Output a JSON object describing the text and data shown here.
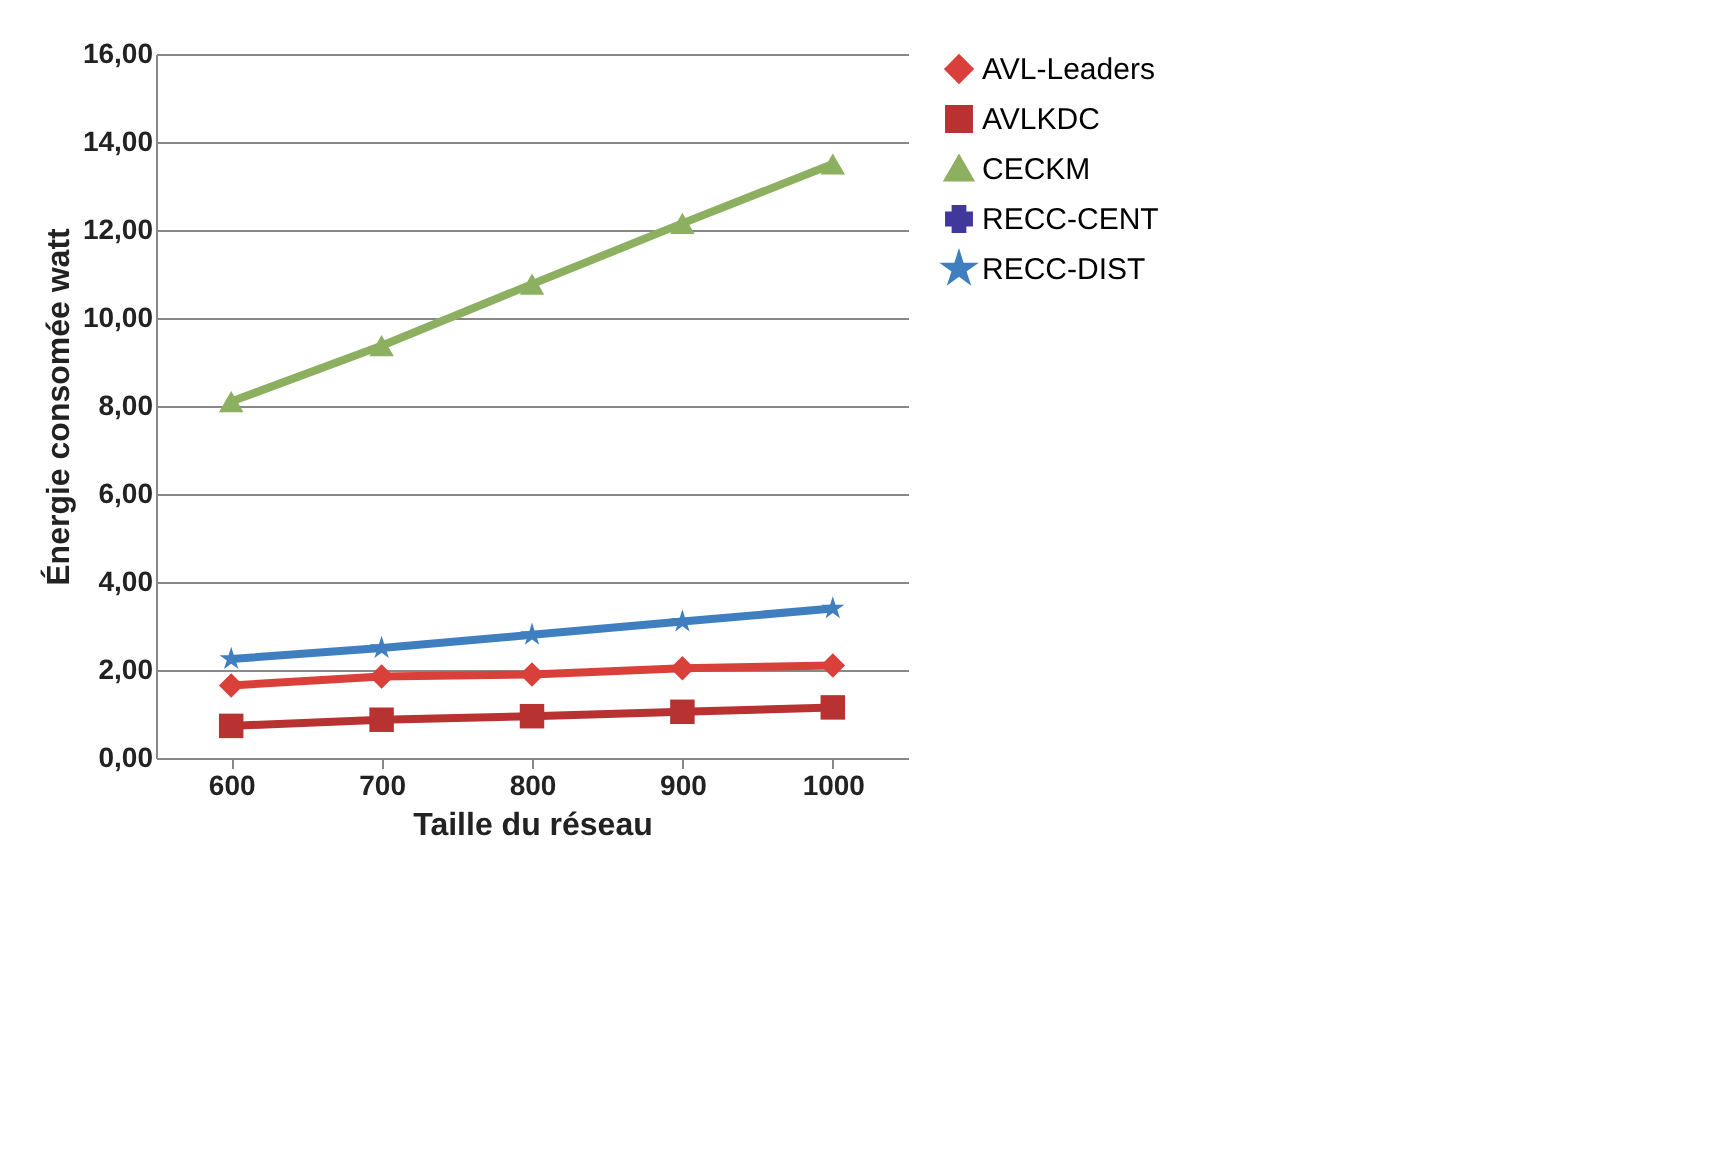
{
  "chart_data": {
    "type": "line",
    "xlabel": "Taille du réseau",
    "ylabel": "Énergie consomée watt",
    "categories": [
      "600",
      "700",
      "800",
      "900",
      "1000"
    ],
    "series": [
      {
        "name": "AVL-Leaders",
        "color": "#d9403a",
        "marker": "diamond",
        "values": [
          1.65,
          1.85,
          1.9,
          2.04,
          2.1
        ]
      },
      {
        "name": "AVLKDC",
        "color": "#b83232",
        "marker": "square",
        "values": [
          0.73,
          0.87,
          0.95,
          1.05,
          1.15
        ]
      },
      {
        "name": "CECKM",
        "color": "#8cb060",
        "marker": "triangle",
        "values": [
          8.1,
          9.37,
          10.77,
          12.15,
          13.5
        ]
      },
      {
        "name": "RECC-CENT",
        "color": "#40389a",
        "marker": "cross",
        "values": [
          null,
          null,
          null,
          null,
          null
        ]
      },
      {
        "name": "RECC-DIST",
        "color": "#3f7fc0",
        "marker": "star",
        "values": [
          2.25,
          2.5,
          2.8,
          3.1,
          3.4
        ]
      }
    ],
    "ylim": [
      0,
      16
    ],
    "yticks": [
      {
        "value": 0,
        "label": "0,00"
      },
      {
        "value": 2,
        "label": "2,00"
      },
      {
        "value": 4,
        "label": "4,00"
      },
      {
        "value": 6,
        "label": "6,00"
      },
      {
        "value": 8,
        "label": "8,00"
      },
      {
        "value": 10,
        "label": "10,00"
      },
      {
        "value": 12,
        "label": "12,00"
      },
      {
        "value": 14,
        "label": "14,00"
      },
      {
        "value": 16,
        "label": "16,00"
      }
    ],
    "grid": "y",
    "legend": "right"
  }
}
